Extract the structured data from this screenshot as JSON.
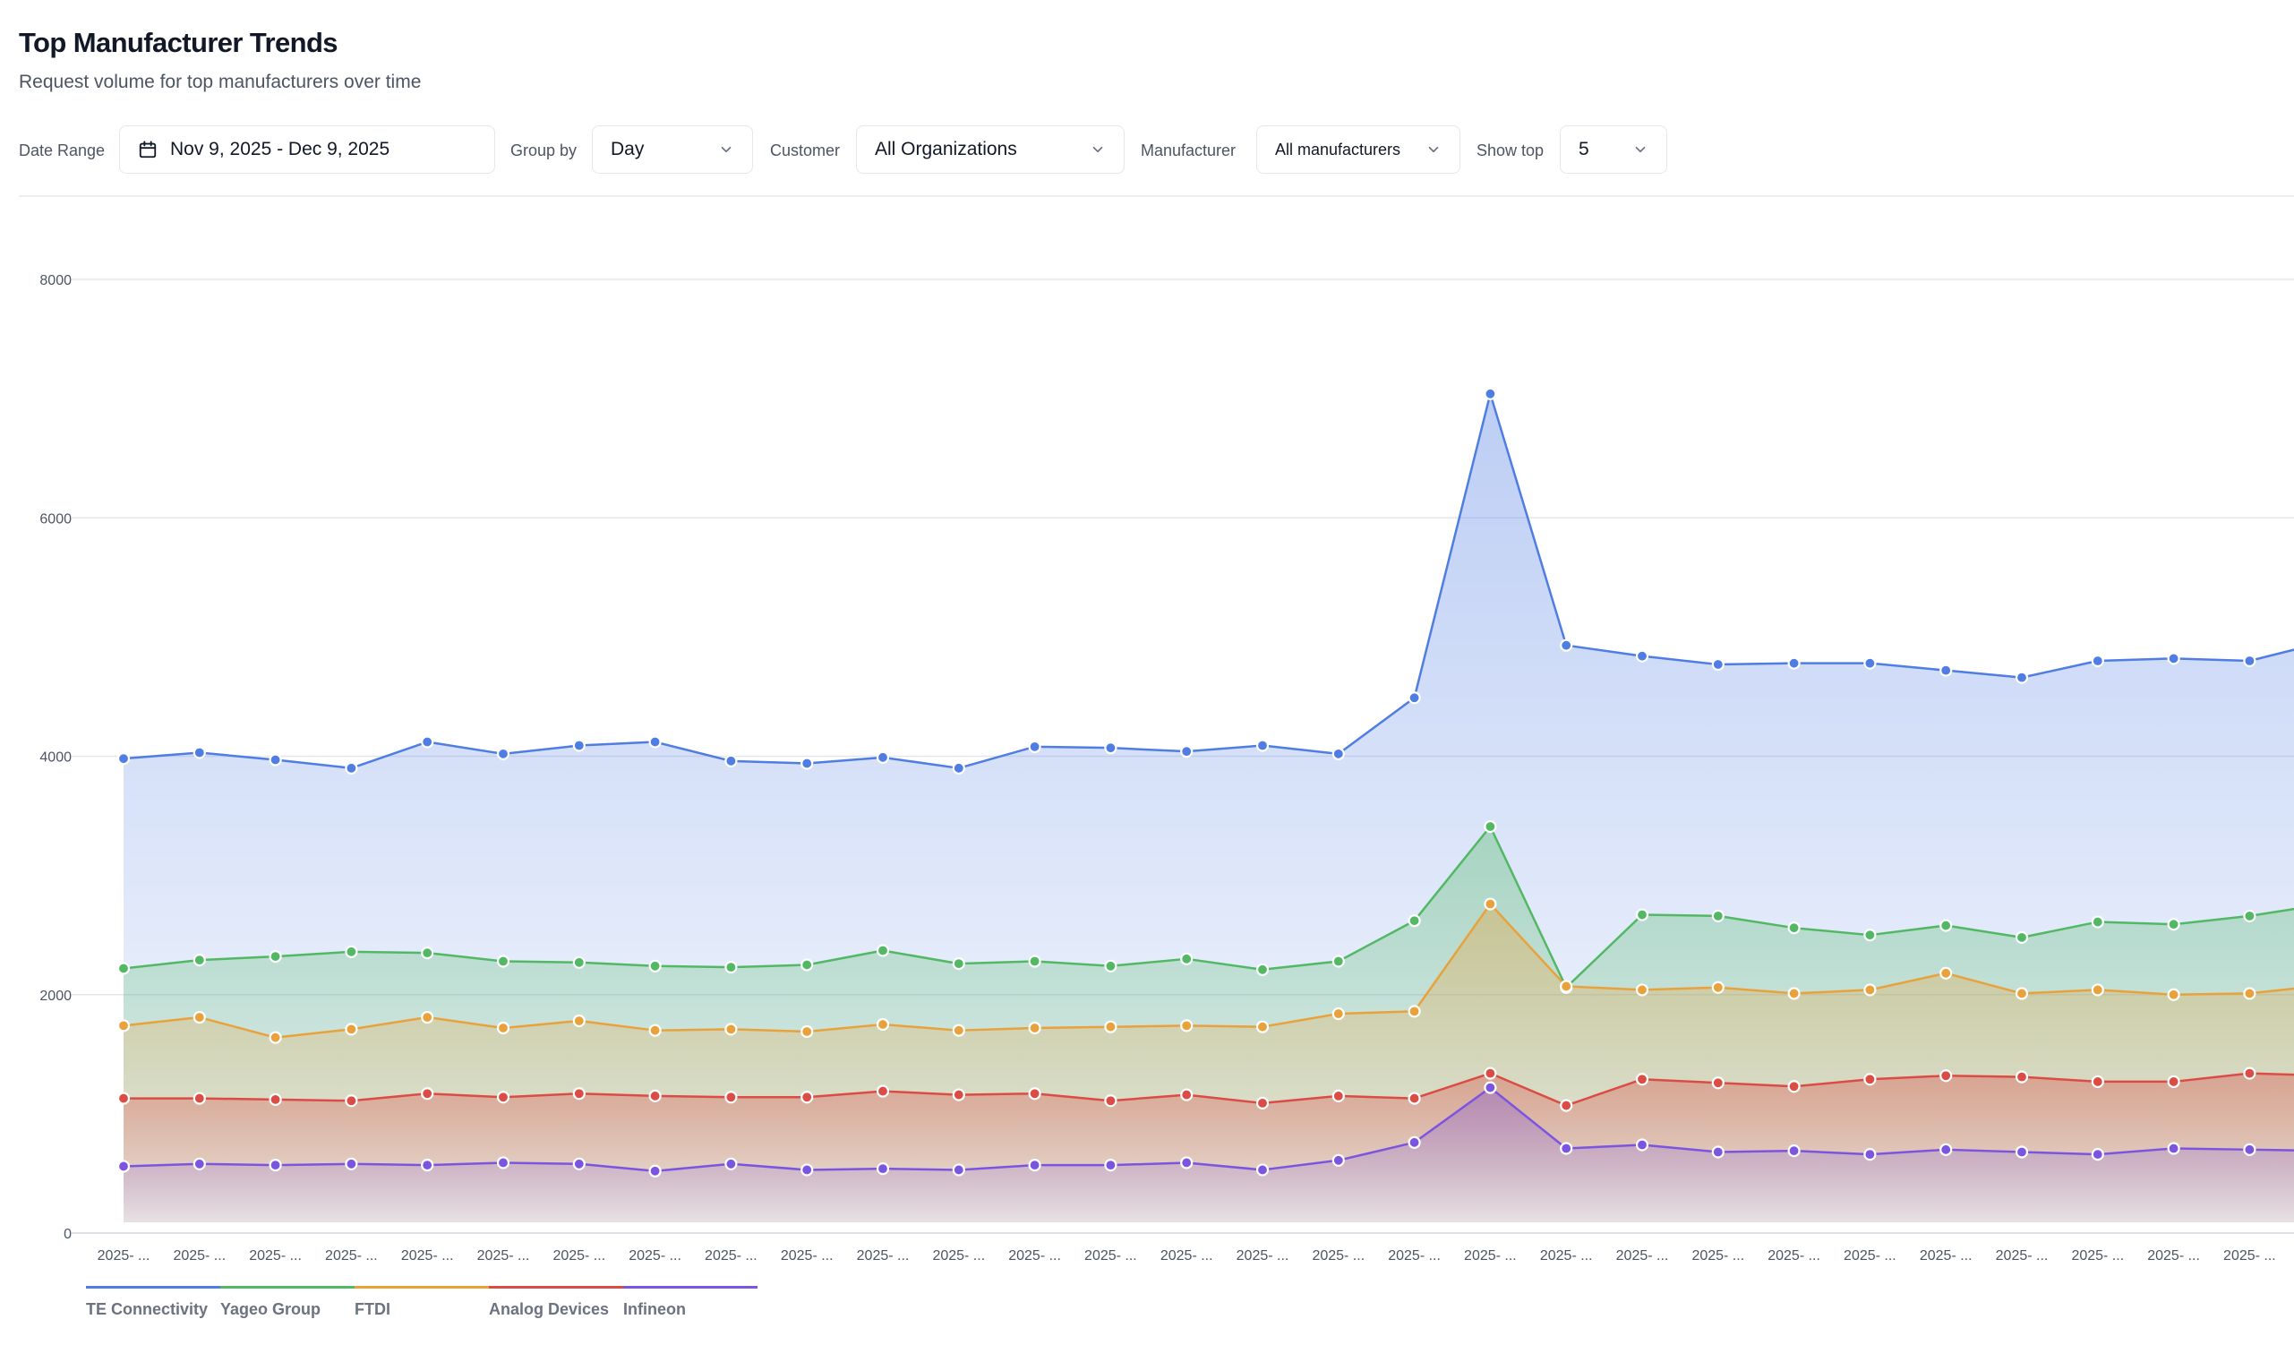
{
  "header": {
    "title": "Top Manufacturer Trends",
    "subtitle": "Request volume for top manufacturers over time"
  },
  "filters": {
    "date_range": {
      "label": "Date Range",
      "value": "Nov 9, 2025 - Dec 9, 2025"
    },
    "group_by": {
      "label": "Group by",
      "value": "Day"
    },
    "customer": {
      "label": "Customer",
      "value": "All Organizations"
    },
    "manufacturer": {
      "label": "Manufacturer",
      "value": "All manufacturers"
    },
    "show_top": {
      "label": "Show top",
      "value": "5"
    }
  },
  "icons": {
    "date_range": "calendar-icon",
    "dropdown": "chevron-down-icon"
  },
  "chart_data": {
    "type": "area",
    "stacked": false,
    "title": "",
    "xlabel": "",
    "ylabel": "",
    "ylim": [
      0,
      8000
    ],
    "yticks": [
      0,
      2000,
      4000,
      6000,
      8000
    ],
    "grid": "horizontal",
    "legend_position": "bottom-left",
    "x": [
      "2025- ...",
      "2025- ...",
      "2025- ...",
      "2025- ...",
      "2025- ...",
      "2025- ...",
      "2025- ...",
      "2025- ...",
      "2025- ...",
      "2025- ...",
      "2025- ...",
      "2025- ...",
      "2025- ...",
      "2025- ...",
      "2025- ...",
      "2025- ...",
      "2025- ...",
      "2025- ...",
      "2025- ...",
      "2025- ...",
      "2025- ...",
      "2025- ...",
      "2025- ...",
      "2025- ...",
      "2025- ...",
      "2025- ...",
      "2025- ...",
      "2025- ...",
      "2025- ...",
      "2025- ..."
    ],
    "series": [
      {
        "name": "TE Connectivity",
        "color": "#4f7de3",
        "values": [
          3980,
          4030,
          3970,
          3900,
          4120,
          4020,
          4090,
          4120,
          3960,
          3940,
          3990,
          3900,
          4080,
          4070,
          4040,
          4090,
          4020,
          4490,
          7040,
          4930,
          4840,
          4770,
          4780,
          4780,
          4720,
          4660,
          4800,
          4820,
          4800,
          4960
        ]
      },
      {
        "name": "Yageo Group",
        "color": "#52b864",
        "values": [
          2220,
          2290,
          2320,
          2360,
          2350,
          2280,
          2270,
          2240,
          2230,
          2250,
          2370,
          2260,
          2280,
          2240,
          2300,
          2210,
          2280,
          2620,
          3410,
          2060,
          2670,
          2660,
          2560,
          2500,
          2580,
          2480,
          2610,
          2590,
          2660,
          2760
        ]
      },
      {
        "name": "FTDI",
        "color": "#e9a23b",
        "values": [
          1740,
          1810,
          1640,
          1710,
          1810,
          1720,
          1780,
          1700,
          1710,
          1690,
          1750,
          1700,
          1720,
          1730,
          1740,
          1730,
          1840,
          1860,
          2760,
          2070,
          2040,
          2060,
          2010,
          2040,
          2180,
          2010,
          2040,
          2000,
          2010,
          2080
        ]
      },
      {
        "name": "Analog Devices",
        "color": "#db4c45",
        "values": [
          1130,
          1130,
          1120,
          1110,
          1170,
          1140,
          1170,
          1150,
          1140,
          1140,
          1190,
          1160,
          1170,
          1110,
          1160,
          1090,
          1150,
          1130,
          1340,
          1070,
          1290,
          1260,
          1230,
          1290,
          1320,
          1310,
          1270,
          1270,
          1340,
          1320
        ]
      },
      {
        "name": "Infineon",
        "color": "#7b55df",
        "values": [
          560,
          580,
          570,
          580,
          570,
          590,
          580,
          520,
          580,
          530,
          540,
          530,
          570,
          570,
          590,
          530,
          610,
          760,
          1220,
          710,
          740,
          680,
          690,
          660,
          700,
          680,
          660,
          710,
          700,
          690
        ]
      }
    ]
  }
}
